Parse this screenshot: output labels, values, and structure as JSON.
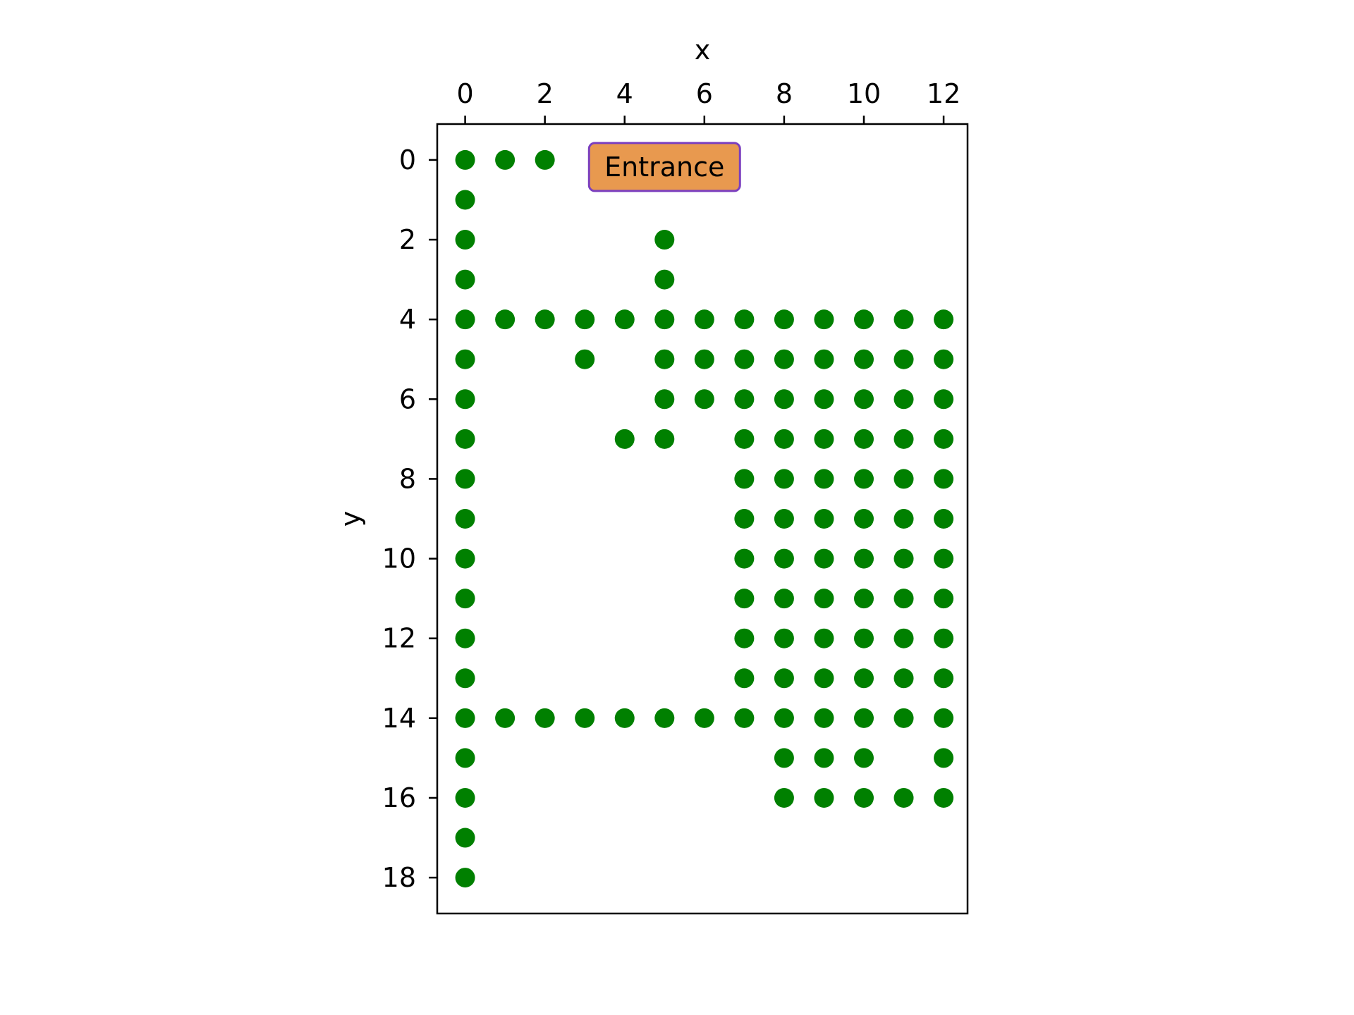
{
  "chart_data": {
    "type": "scatter",
    "title": "",
    "xlabel": "x",
    "ylabel": "y",
    "xlim": [
      -0.7,
      12.6
    ],
    "ylim": [
      18.9,
      -0.9
    ],
    "x_axis_position": "top",
    "y_inverted": true,
    "x_ticks": [
      0,
      2,
      4,
      6,
      8,
      10,
      12
    ],
    "y_ticks": [
      0,
      2,
      4,
      6,
      8,
      10,
      12,
      14,
      16,
      18
    ],
    "grid": false,
    "legend": "none",
    "marker_color": "#008000",
    "series": [
      {
        "points": [
          [
            0,
            0
          ],
          [
            1,
            0
          ],
          [
            2,
            0
          ],
          [
            0,
            1
          ],
          [
            0,
            2
          ],
          [
            5,
            2
          ],
          [
            0,
            3
          ],
          [
            5,
            3
          ],
          [
            0,
            4
          ],
          [
            1,
            4
          ],
          [
            2,
            4
          ],
          [
            3,
            4
          ],
          [
            4,
            4
          ],
          [
            5,
            4
          ],
          [
            6,
            4
          ],
          [
            7,
            4
          ],
          [
            8,
            4
          ],
          [
            9,
            4
          ],
          [
            10,
            4
          ],
          [
            11,
            4
          ],
          [
            12,
            4
          ],
          [
            0,
            5
          ],
          [
            3,
            5
          ],
          [
            5,
            5
          ],
          [
            6,
            5
          ],
          [
            7,
            5
          ],
          [
            8,
            5
          ],
          [
            9,
            5
          ],
          [
            10,
            5
          ],
          [
            11,
            5
          ],
          [
            12,
            5
          ],
          [
            0,
            6
          ],
          [
            5,
            6
          ],
          [
            6,
            6
          ],
          [
            7,
            6
          ],
          [
            8,
            6
          ],
          [
            9,
            6
          ],
          [
            10,
            6
          ],
          [
            11,
            6
          ],
          [
            12,
            6
          ],
          [
            0,
            7
          ],
          [
            4,
            7
          ],
          [
            5,
            7
          ],
          [
            7,
            7
          ],
          [
            8,
            7
          ],
          [
            9,
            7
          ],
          [
            10,
            7
          ],
          [
            11,
            7
          ],
          [
            12,
            7
          ],
          [
            0,
            8
          ],
          [
            7,
            8
          ],
          [
            8,
            8
          ],
          [
            9,
            8
          ],
          [
            10,
            8
          ],
          [
            11,
            8
          ],
          [
            12,
            8
          ],
          [
            0,
            9
          ],
          [
            7,
            9
          ],
          [
            8,
            9
          ],
          [
            9,
            9
          ],
          [
            10,
            9
          ],
          [
            11,
            9
          ],
          [
            12,
            9
          ],
          [
            0,
            10
          ],
          [
            7,
            10
          ],
          [
            8,
            10
          ],
          [
            9,
            10
          ],
          [
            10,
            10
          ],
          [
            11,
            10
          ],
          [
            12,
            10
          ],
          [
            0,
            11
          ],
          [
            7,
            11
          ],
          [
            8,
            11
          ],
          [
            9,
            11
          ],
          [
            10,
            11
          ],
          [
            11,
            11
          ],
          [
            12,
            11
          ],
          [
            0,
            12
          ],
          [
            7,
            12
          ],
          [
            8,
            12
          ],
          [
            9,
            12
          ],
          [
            10,
            12
          ],
          [
            11,
            12
          ],
          [
            12,
            12
          ],
          [
            0,
            13
          ],
          [
            7,
            13
          ],
          [
            8,
            13
          ],
          [
            9,
            13
          ],
          [
            10,
            13
          ],
          [
            11,
            13
          ],
          [
            12,
            13
          ],
          [
            0,
            14
          ],
          [
            1,
            14
          ],
          [
            2,
            14
          ],
          [
            3,
            14
          ],
          [
            4,
            14
          ],
          [
            5,
            14
          ],
          [
            6,
            14
          ],
          [
            7,
            14
          ],
          [
            8,
            14
          ],
          [
            9,
            14
          ],
          [
            10,
            14
          ],
          [
            11,
            14
          ],
          [
            12,
            14
          ],
          [
            0,
            15
          ],
          [
            8,
            15
          ],
          [
            9,
            15
          ],
          [
            10,
            15
          ],
          [
            12,
            15
          ],
          [
            0,
            16
          ],
          [
            8,
            16
          ],
          [
            9,
            16
          ],
          [
            10,
            16
          ],
          [
            11,
            16
          ],
          [
            12,
            16
          ],
          [
            0,
            17
          ],
          [
            0,
            18
          ]
        ]
      }
    ],
    "annotations": [
      {
        "text": "Entrance",
        "x": 5,
        "y": 0,
        "box_fill": "#e8994f",
        "box_edge": "#7b3fbf"
      }
    ]
  }
}
